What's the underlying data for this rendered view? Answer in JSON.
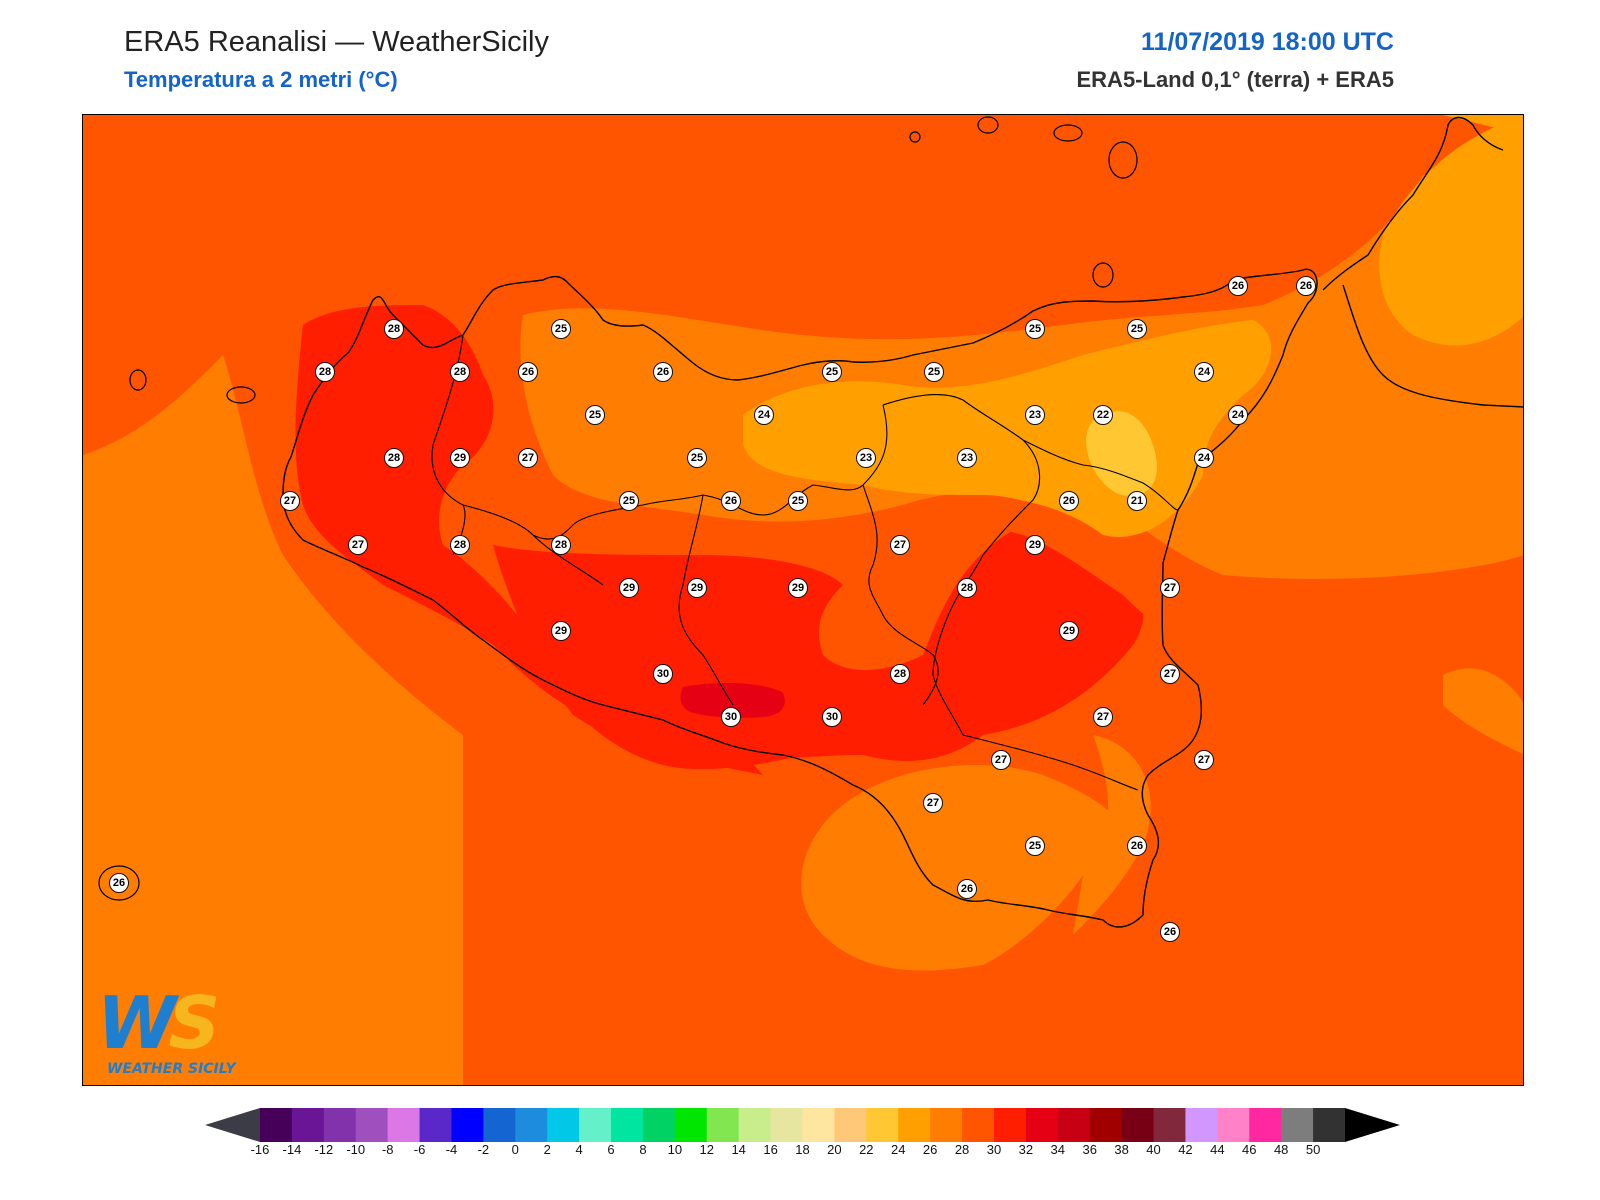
{
  "header": {
    "title": "ERA5 Reanalisi — WeatherSicily",
    "subtitle": "Temperatura a 2 metri (°C)",
    "datetime": "11/07/2019 18:00 UTC",
    "source": "ERA5-Land 0,1° (terra) + ERA5"
  },
  "logo": {
    "text": "WEATHER SICILY",
    "mark": "WS"
  },
  "colors": {
    "t21_22": "#ffc832",
    "t22_24": "#ffa000",
    "t24_26": "#ff7d00",
    "t26_28": "#ff5500",
    "t28_30": "#ff1e00",
    "t30_32": "#e60014",
    "coast": "#000000"
  },
  "stations": [
    {
      "value": "28"
    },
    {
      "value": "25"
    },
    {
      "value": "28"
    },
    {
      "value": "28"
    },
    {
      "value": "26"
    },
    {
      "value": "26"
    },
    {
      "value": "25"
    },
    {
      "value": "24"
    },
    {
      "value": "28"
    },
    {
      "value": "29"
    },
    {
      "value": "27"
    },
    {
      "value": "25"
    },
    {
      "value": "27"
    },
    {
      "value": "27"
    },
    {
      "value": "28"
    },
    {
      "value": "28"
    },
    {
      "value": "25"
    },
    {
      "value": "26"
    },
    {
      "value": "25"
    },
    {
      "value": "29"
    },
    {
      "value": "29"
    },
    {
      "value": "29"
    },
    {
      "value": "29"
    },
    {
      "value": "30"
    },
    {
      "value": "30"
    },
    {
      "value": "30"
    },
    {
      "value": "25"
    },
    {
      "value": "25"
    },
    {
      "value": "23"
    },
    {
      "value": "23"
    },
    {
      "value": "27"
    },
    {
      "value": "28"
    },
    {
      "value": "28"
    },
    {
      "value": "27"
    },
    {
      "value": "25"
    },
    {
      "value": "23"
    },
    {
      "value": "22"
    },
    {
      "value": "26"
    },
    {
      "value": "21"
    },
    {
      "value": "29"
    },
    {
      "value": "29"
    },
    {
      "value": "27"
    },
    {
      "value": "26"
    },
    {
      "value": "26"
    },
    {
      "value": "25"
    },
    {
      "value": "24"
    },
    {
      "value": "24"
    },
    {
      "value": "24"
    },
    {
      "value": "27"
    },
    {
      "value": "27"
    },
    {
      "value": "27"
    },
    {
      "value": "27"
    },
    {
      "value": "25"
    },
    {
      "value": "26"
    },
    {
      "value": "26"
    },
    {
      "value": "26"
    },
    {
      "value": "26"
    }
  ],
  "colorbar": {
    "ticks": [
      "-16",
      "-14",
      "-12",
      "-10",
      "-8",
      "-6",
      "-4",
      "-2",
      "0",
      "2",
      "4",
      "6",
      "8",
      "10",
      "12",
      "14",
      "16",
      "18",
      "20",
      "22",
      "24",
      "26",
      "28",
      "30",
      "32",
      "34",
      "36",
      "38",
      "40",
      "42",
      "44",
      "46",
      "48",
      "50"
    ],
    "colors": [
      "#46005a",
      "#6a1496",
      "#8232aa",
      "#a050be",
      "#dc78e6",
      "#5a28c8",
      "#0000ff",
      "#1464d2",
      "#1e8cdc",
      "#00c8e6",
      "#64f0c8",
      "#00e6a0",
      "#00d264",
      "#00e600",
      "#82e650",
      "#c8ee8c",
      "#e6e6a0",
      "#ffe6a0",
      "#ffc878",
      "#ffc832",
      "#ffa000",
      "#ff7d00",
      "#ff5500",
      "#ff1e00",
      "#e60014",
      "#c80014",
      "#a00000",
      "#780014",
      "#82283c",
      "#d296ff",
      "#ff82c8",
      "#ff28a0",
      "#7d7d7d",
      "#323232"
    ],
    "under_color": "#3c3c46",
    "over_color": "#000000"
  }
}
